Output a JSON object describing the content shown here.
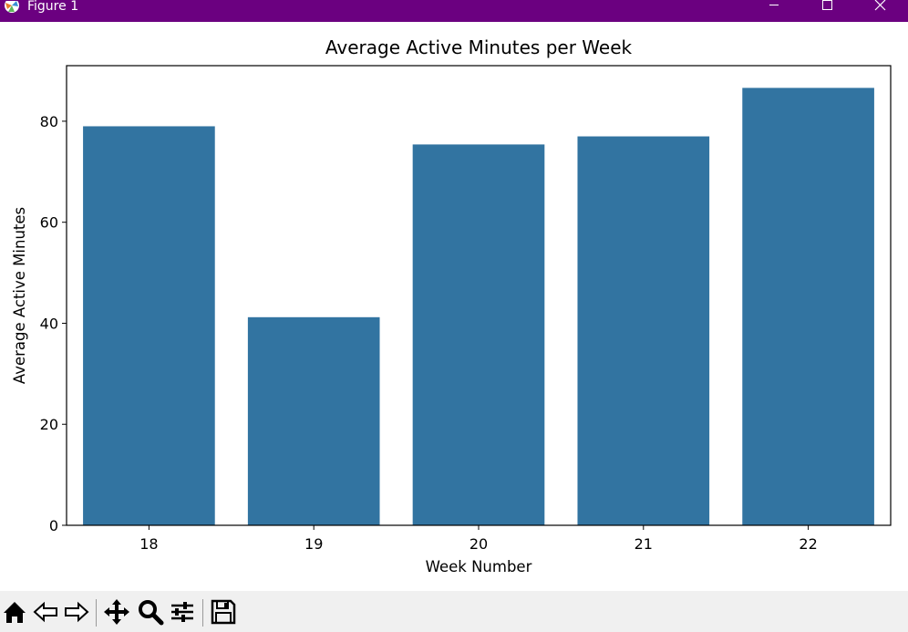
{
  "window": {
    "title": "Figure 1"
  },
  "chart_data": {
    "type": "bar",
    "title": "Average Active Minutes per Week",
    "xlabel": "Week Number",
    "ylabel": "Average Active Minutes",
    "categories": [
      "18",
      "19",
      "20",
      "21",
      "22"
    ],
    "values": [
      79.0,
      41.2,
      75.4,
      77.0,
      86.6
    ],
    "ylim": [
      0,
      91
    ],
    "yticks": [
      0,
      20,
      40,
      60,
      80
    ],
    "grid": false,
    "bar_color": "#3274a1"
  },
  "toolbar": {
    "tools": [
      "home-icon",
      "back-icon",
      "forward-icon",
      "pan-icon",
      "zoom-icon",
      "configure-subplots-icon",
      "save-icon"
    ],
    "status": ""
  }
}
